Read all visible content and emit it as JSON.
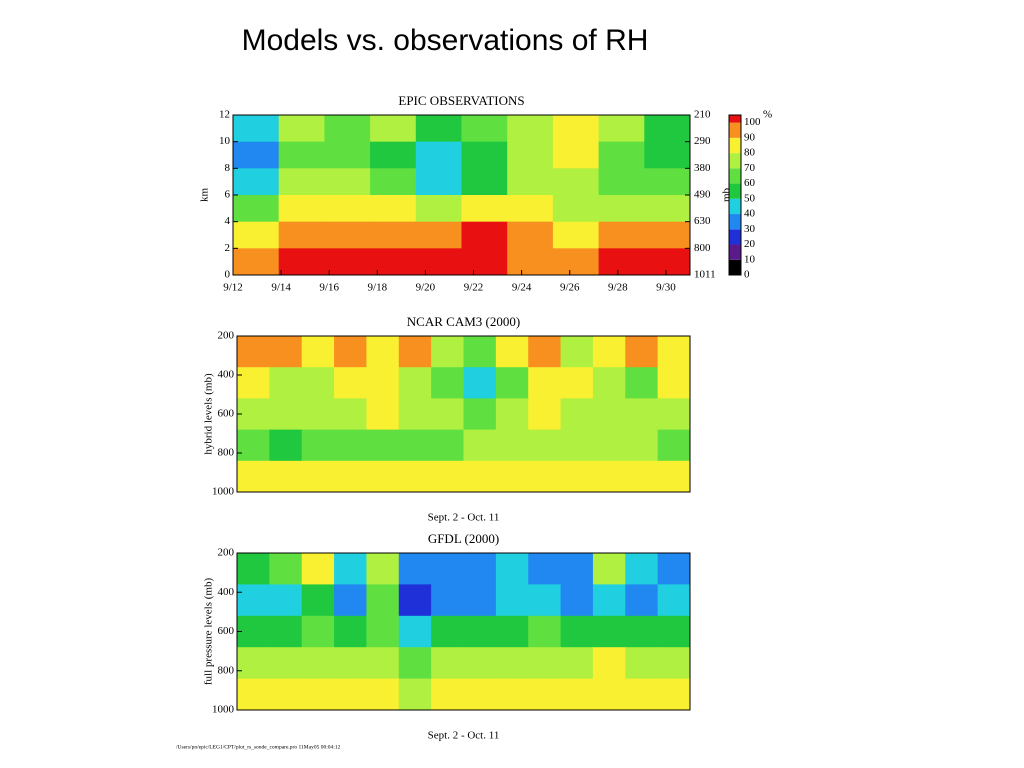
{
  "title": "Models vs. observations of RH",
  "footer": "/Users/pn/epic/LEG1/CPT/plot_rs_sonde_compare.pro 11May05 00:04:12",
  "chart_data": [
    {
      "type": "heatmap",
      "title": "EPIC OBSERVATIONS",
      "ylabel": "km",
      "y2label": "mb",
      "categories": [
        "9/12",
        "9/14",
        "9/16",
        "9/18",
        "9/20",
        "9/22",
        "9/24",
        "9/26",
        "9/28",
        "9/30"
      ],
      "ylim": [
        0,
        12
      ],
      "yticks": [
        0,
        2,
        4,
        6,
        8,
        10,
        12
      ],
      "y2ticks": [
        1011,
        800,
        630,
        490,
        380,
        290,
        210
      ],
      "z": [
        [
          40,
          70,
          60,
          70,
          50,
          60,
          70,
          80,
          70,
          50
        ],
        [
          30,
          60,
          60,
          50,
          40,
          50,
          70,
          80,
          60,
          50
        ],
        [
          40,
          70,
          70,
          60,
          40,
          50,
          70,
          70,
          60,
          60
        ],
        [
          60,
          80,
          80,
          80,
          70,
          80,
          80,
          70,
          70,
          70
        ],
        [
          80,
          90,
          90,
          90,
          90,
          100,
          90,
          80,
          90,
          90
        ],
        [
          90,
          100,
          100,
          100,
          100,
          100,
          90,
          90,
          100,
          100
        ]
      ],
      "colorbar": {
        "label": "%",
        "ticks": [
          0,
          10,
          20,
          30,
          40,
          50,
          60,
          70,
          80,
          90,
          100
        ],
        "colors": [
          "#000000",
          "#5a1a8c",
          "#2030d8",
          "#2088f0",
          "#20d0e0",
          "#20c840",
          "#60e040",
          "#b0f040",
          "#f8f030",
          "#f89020",
          "#e81010"
        ]
      }
    },
    {
      "type": "heatmap",
      "title": "NCAR CAM3 (2000)",
      "ylabel": "hybrid levels (mb)",
      "xlabel": "Sept. 2 - Oct. 11",
      "ylim": [
        1000,
        200
      ],
      "yticks": [
        200,
        400,
        600,
        800,
        1000
      ],
      "z": [
        [
          90,
          90,
          80,
          90,
          80,
          90,
          70,
          60,
          80,
          90,
          70,
          80,
          90,
          80
        ],
        [
          80,
          70,
          70,
          80,
          80,
          70,
          60,
          40,
          60,
          80,
          80,
          70,
          60,
          80
        ],
        [
          70,
          70,
          70,
          70,
          80,
          70,
          70,
          60,
          70,
          80,
          70,
          70,
          70,
          70
        ],
        [
          60,
          50,
          60,
          60,
          60,
          60,
          60,
          70,
          70,
          70,
          70,
          70,
          70,
          60
        ],
        [
          80,
          80,
          80,
          80,
          80,
          80,
          80,
          80,
          80,
          80,
          80,
          80,
          80,
          80
        ]
      ]
    },
    {
      "type": "heatmap",
      "title": "GFDL (2000)",
      "ylabel": "full pressure levels (mb)",
      "xlabel": "Sept. 2 - Oct. 11",
      "ylim": [
        1000,
        200
      ],
      "yticks": [
        200,
        400,
        600,
        800,
        1000
      ],
      "z": [
        [
          50,
          60,
          80,
          40,
          70,
          30,
          30,
          30,
          40,
          30,
          30,
          70,
          40,
          30
        ],
        [
          40,
          40,
          50,
          30,
          60,
          20,
          30,
          30,
          40,
          40,
          30,
          40,
          30,
          40
        ],
        [
          50,
          50,
          60,
          50,
          60,
          40,
          50,
          50,
          50,
          60,
          50,
          50,
          50,
          50
        ],
        [
          70,
          70,
          70,
          70,
          70,
          60,
          70,
          70,
          70,
          70,
          70,
          80,
          70,
          70
        ],
        [
          80,
          80,
          80,
          80,
          80,
          70,
          80,
          80,
          80,
          80,
          80,
          80,
          80,
          80
        ]
      ]
    }
  ]
}
